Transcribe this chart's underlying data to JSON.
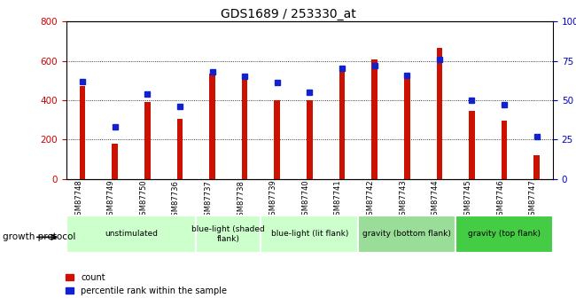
{
  "title": "GDS1689 / 253330_at",
  "samples": [
    "GSM87748",
    "GSM87749",
    "GSM87750",
    "GSM87736",
    "GSM87737",
    "GSM87738",
    "GSM87739",
    "GSM87740",
    "GSM87741",
    "GSM87742",
    "GSM87743",
    "GSM87744",
    "GSM87745",
    "GSM87746",
    "GSM87747"
  ],
  "counts": [
    470,
    180,
    390,
    305,
    535,
    525,
    400,
    400,
    565,
    605,
    530,
    665,
    345,
    295,
    120
  ],
  "percentiles": [
    62,
    33,
    54,
    46,
    68,
    65,
    61,
    55,
    70,
    72,
    66,
    76,
    50,
    47,
    27
  ],
  "groups": [
    {
      "label": "unstimulated",
      "indices": [
        0,
        1,
        2,
        3
      ],
      "color": "#ccffcc"
    },
    {
      "label": "blue-light (shaded\nflank)",
      "indices": [
        4,
        5
      ],
      "color": "#ccffcc"
    },
    {
      "label": "blue-light (lit flank)",
      "indices": [
        6,
        7,
        8
      ],
      "color": "#ccffcc"
    },
    {
      "label": "gravity (bottom flank)",
      "indices": [
        9,
        10,
        11
      ],
      "color": "#99dd99"
    },
    {
      "label": "gravity (top flank)",
      "indices": [
        12,
        13,
        14
      ],
      "color": "#44cc44"
    }
  ],
  "ylim_left": [
    0,
    800
  ],
  "ylim_right": [
    0,
    100
  ],
  "yticks_left": [
    0,
    200,
    400,
    600,
    800
  ],
  "yticks_right": [
    0,
    25,
    50,
    75,
    100
  ],
  "bar_color_red": "#cc1100",
  "bar_color_blue": "#1122cc",
  "tick_color_left": "#cc0000",
  "tick_color_right": "#0000cc",
  "group_label": "growth protocol",
  "legend_count": "count",
  "legend_pct": "percentile rank within the sample",
  "bar_width": 0.18,
  "dot_size": 28,
  "bg_gray": "#c8c8c8"
}
